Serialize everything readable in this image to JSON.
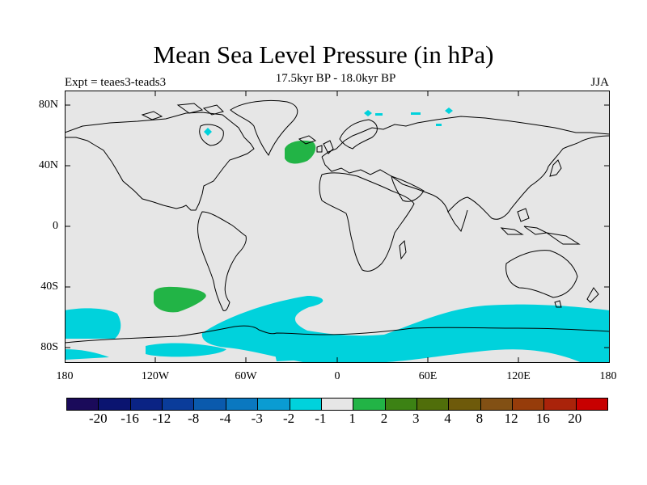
{
  "title": "Mean Sea Level Pressure (in hPa)",
  "subtitle": "17.5kyr BP - 18.0kyr BP",
  "expt": "Expt = teaes3-teads3",
  "season": "JJA",
  "axes": {
    "lat_labels": [
      "80N",
      "40N",
      "0",
      "40S",
      "80S"
    ],
    "lon_labels": [
      "180",
      "120W",
      "60W",
      "0",
      "60E",
      "120E",
      "180"
    ]
  },
  "colors": {
    "background": "#e6e6e6",
    "negative_fill": "#00d2dc",
    "positive_fill": "#22b446"
  },
  "colorbar": {
    "colors": [
      "#1a0a5a",
      "#0a1470",
      "#0a2384",
      "#0a3c9a",
      "#0a5aad",
      "#0a78c0",
      "#0a9cd2",
      "#00d2dc",
      "#e6e6e6",
      "#22b446",
      "#3c8214",
      "#506e0a",
      "#6e5a0a",
      "#825014",
      "#963c0a",
      "#aa230a",
      "#c80000"
    ],
    "labels": [
      "-20",
      "-16",
      "-12",
      "-8",
      "-4",
      "-3",
      "-2",
      "-1",
      "1",
      "2",
      "3",
      "4",
      "8",
      "12",
      "16",
      "20"
    ]
  }
}
